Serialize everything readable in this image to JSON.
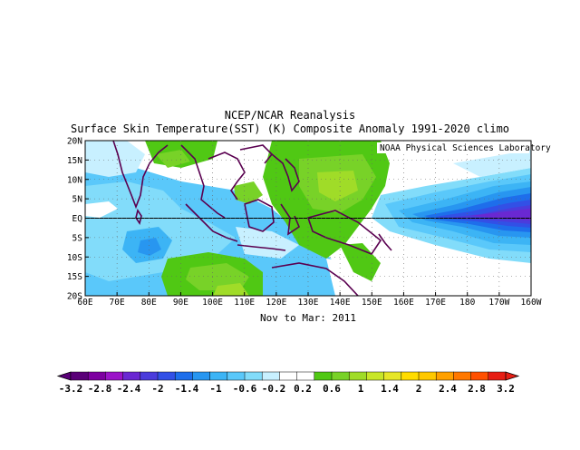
{
  "titles": {
    "line1": "NCEP/NCAR Reanalysis",
    "line2": "Surface Skin Temperature(SST) (K) Composite Anomaly 1991-2020 climo"
  },
  "credit": "NOAA Physical Sciences Laboratory",
  "period": "Nov to Mar: 2011",
  "map": {
    "lat_labels": [
      "20N",
      "15N",
      "10N",
      "5N",
      "EQ",
      "5S",
      "10S",
      "15S",
      "20S"
    ],
    "lon_labels": [
      "60E",
      "70E",
      "80E",
      "90E",
      "100E",
      "110E",
      "120E",
      "130E",
      "140E",
      "150E",
      "160E",
      "170E",
      "180",
      "170W",
      "160W"
    ]
  },
  "colorbar": {
    "labels": [
      "-3.2",
      "-2.8",
      "-2.4",
      "-2",
      "-1.4",
      "-1",
      "-0.6",
      "-0.2",
      "0.2",
      "0.6",
      "1",
      "1.4",
      "2",
      "2.4",
      "2.8",
      "3.2"
    ],
    "colors": [
      "#5a0078",
      "#7d00a0",
      "#9b14c8",
      "#6a28d2",
      "#4b3cdc",
      "#3250e6",
      "#1e6eeb",
      "#2896f0",
      "#3cb4f5",
      "#5ac8fa",
      "#82dcfa",
      "#c8f0ff",
      "#ffffff",
      "#ffffff",
      "#50c814",
      "#78d228",
      "#a0dc28",
      "#c8e628",
      "#e6e628",
      "#ffdc00",
      "#ffc800",
      "#ffa000",
      "#ff7800",
      "#ff5000",
      "#e61e14"
    ]
  },
  "chart_data": {
    "type": "heatmap",
    "title": "Surface Skin Temperature(SST) (K) Composite Anomaly 1991-2020 climo",
    "subtitle": "Nov to Mar: 2011",
    "x_range": [
      "60E",
      "160W"
    ],
    "y_range": [
      "20S",
      "20N"
    ],
    "colorbar_range": [
      -3.2,
      3.2
    ],
    "description_values": {
      "central_equatorial_pacific_min": -2.4,
      "western_pacific_max": 0.6,
      "south_china_sea_max": 0.6
    }
  }
}
